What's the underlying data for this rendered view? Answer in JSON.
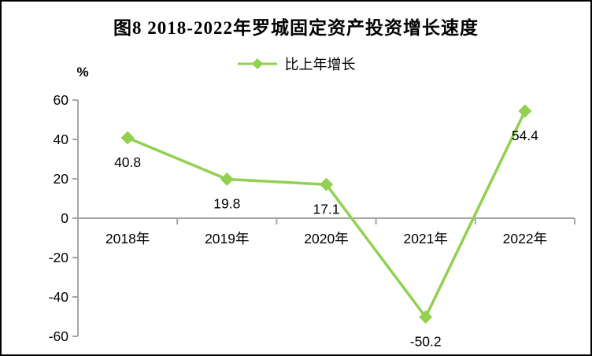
{
  "chart_data": {
    "type": "line",
    "title": "图8  2018-2022年罗城固定资产投资增长速度",
    "legend": "比上年增长",
    "unit": "%",
    "categories": [
      "2018年",
      "2019年",
      "2020年",
      "2021年",
      "2022年"
    ],
    "series": [
      {
        "name": "比上年增长",
        "values": [
          40.8,
          19.8,
          17.1,
          -50.2,
          54.4
        ]
      }
    ],
    "data_labels": [
      "40.8",
      "19.8",
      "17.1",
      "-50.2",
      "54.4"
    ],
    "ylim": [
      -60,
      60
    ],
    "yticks": [
      60,
      40,
      20,
      0,
      -20,
      -40,
      -60
    ],
    "grid": false,
    "legend_position": "top-center",
    "colors": {
      "line": "#92D050",
      "marker": "#92D050",
      "axis": "#A6A6A6",
      "text": "#000000"
    }
  }
}
